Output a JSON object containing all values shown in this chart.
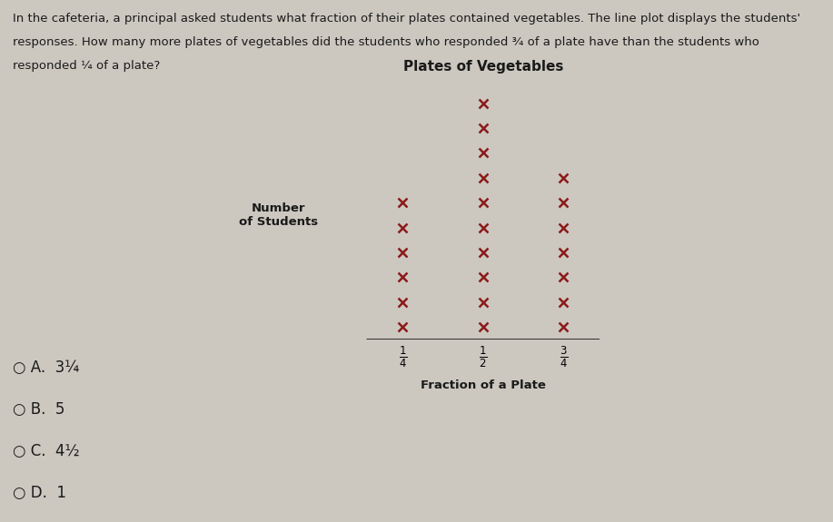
{
  "title": "Plates of Vegetables",
  "xlabel": "Fraction of a Plate",
  "counts": [
    6,
    10,
    7
  ],
  "marker_color": "#8B1A1A",
  "bg_color": "#ccc8c0",
  "text_color": "#1a1a1a",
  "title_fontsize": 11,
  "label_fontsize": 9.5,
  "marker_size": 7,
  "marker_edgewidth": 1.8,
  "q_line1": "In the cafeteria, a principal asked students what fraction of their plates contained vegetables. The line plot displays the students'",
  "q_line2": "responses. How many more plates of vegetables did the students who responded ¾ of a plate have than the students who",
  "q_line3": "responded ¼ of a plate?",
  "choices": [
    "A.  3¼",
    "B.  5",
    "C.  4½",
    "D.  1"
  ],
  "choice_fontsize": 12,
  "q_fontsize": 9.5
}
